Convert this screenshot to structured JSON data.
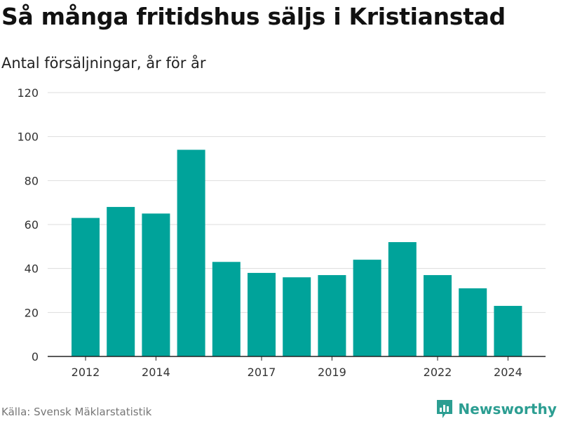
{
  "title": "Så många fritidshus säljs i Kristianstad",
  "subtitle": "Antal försäljningar, år för år",
  "source": "Källa: Svensk Mäklarstatistik",
  "brand": {
    "name": "Newsworthy",
    "icon": "newsworthy-logo-icon",
    "color": "#2c9e92"
  },
  "colors": {
    "bar": "#00a39a",
    "grid": "#dddddd",
    "axis": "#222222",
    "tick_text": "#333333"
  },
  "chart_data": {
    "type": "bar",
    "title": "Så många fritidshus säljs i Kristianstad",
    "subtitle": "Antal försäljningar, år för år",
    "categories": [
      "2012",
      "2013",
      "2014",
      "2015",
      "2016",
      "2017",
      "2018",
      "2019",
      "2020",
      "2021",
      "2022",
      "2023",
      "2024"
    ],
    "values": [
      63,
      68,
      65,
      94,
      43,
      38,
      36,
      37,
      44,
      52,
      37,
      31,
      23
    ],
    "x_tick_labels": [
      "2012",
      "2014",
      "2017",
      "2019",
      "2022",
      "2024"
    ],
    "y_ticks": [
      0,
      20,
      40,
      60,
      80,
      100,
      120
    ],
    "ylim": [
      0,
      120
    ],
    "xlabel": "",
    "ylabel": "",
    "grid": true,
    "legend": "none"
  }
}
